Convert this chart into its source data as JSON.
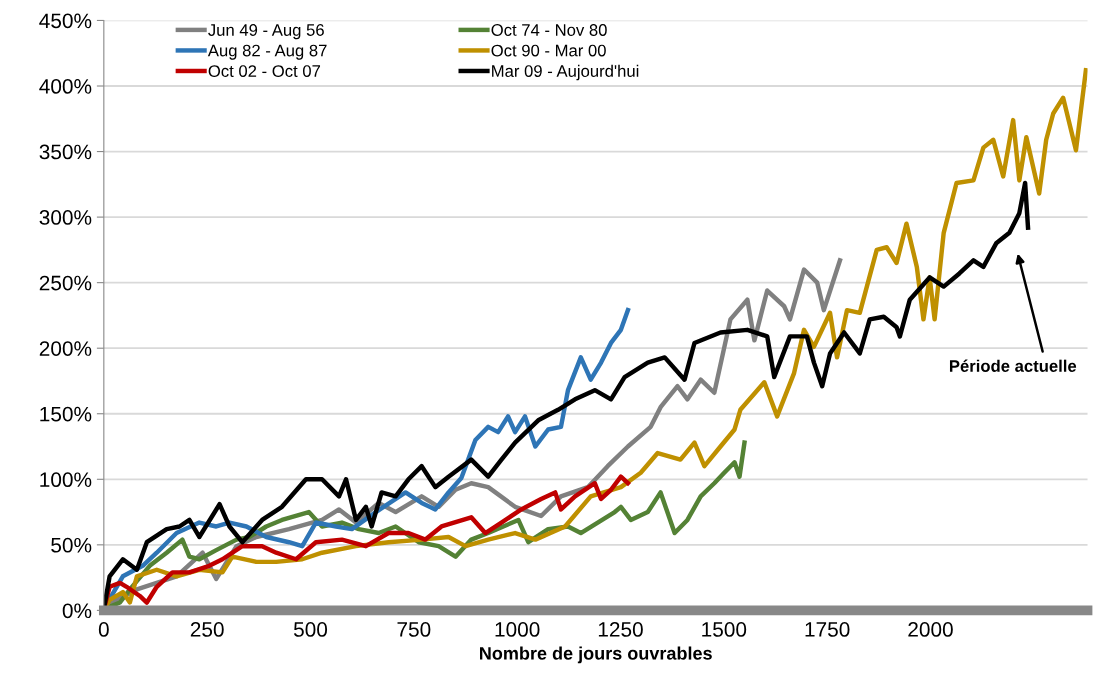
{
  "chart_data": {
    "type": "line",
    "xlabel": "Nombre de jours ouvrables",
    "xlim": [
      0,
      2380
    ],
    "xticks": [
      0,
      250,
      500,
      750,
      1000,
      1250,
      1500,
      1750,
      2000
    ],
    "ylim": [
      0,
      450
    ],
    "yticks": [
      {
        "value": 0,
        "label": "0%"
      },
      {
        "value": 50,
        "label": "50%"
      },
      {
        "value": 100,
        "label": "100%"
      },
      {
        "value": 150,
        "label": "150%"
      },
      {
        "value": 200,
        "label": "200%"
      },
      {
        "value": 250,
        "label": "250%"
      },
      {
        "value": 300,
        "label": "300%"
      },
      {
        "value": 350,
        "label": "350%"
      },
      {
        "value": 400,
        "label": "400%"
      },
      {
        "value": 450,
        "label": "450%"
      }
    ],
    "grid": "y",
    "legend": "top left",
    "marker": "none",
    "line_style": "solid",
    "annotations": [
      "Période actuelle"
    ],
    "series": [
      {
        "name": "Jun 49 - Aug 56",
        "color": "#808080",
        "x": [
          0,
          31,
          80,
          128,
          176,
          239,
          272,
          321,
          369,
          448,
          528,
          569,
          610,
          665,
          706,
          769,
          810,
          851,
          889,
          930,
          995,
          1058,
          1106,
          1171,
          1219,
          1268,
          1323,
          1347,
          1388,
          1412,
          1444,
          1477,
          1516,
          1557,
          1574,
          1605,
          1646,
          1660,
          1694,
          1726,
          1742,
          1781
        ],
        "values": [
          1,
          8,
          16,
          21,
          26,
          44,
          24,
          49,
          56,
          62,
          69,
          77,
          67,
          82,
          75,
          87,
          79,
          92,
          97,
          94,
          79,
          72,
          87,
          94,
          110,
          125,
          140,
          155,
          171,
          161,
          176,
          166,
          222,
          237,
          206,
          244,
          232,
          222,
          260,
          250,
          229,
          267
        ]
      },
      {
        "name": "Oct 74 - Nov 80",
        "color": "#548235",
        "x": [
          0,
          39,
          63,
          111,
          152,
          190,
          207,
          231,
          272,
          321,
          352,
          393,
          431,
          496,
          528,
          576,
          617,
          665,
          706,
          762,
          810,
          851,
          889,
          930,
          1003,
          1027,
          1075,
          1123,
          1154,
          1195,
          1236,
          1251,
          1275,
          1316,
          1347,
          1381,
          1412,
          1444,
          1477,
          1501,
          1526,
          1538,
          1550
        ],
        "values": [
          1,
          6,
          16,
          34,
          44,
          54,
          41,
          39,
          46,
          54,
          56,
          64,
          69,
          75,
          64,
          67,
          62,
          59,
          64,
          52,
          49,
          41,
          54,
          59,
          69,
          52,
          62,
          64,
          59,
          67,
          75,
          79,
          69,
          75,
          90,
          59,
          69,
          87,
          97,
          105,
          113,
          102,
          128
        ]
      },
      {
        "name": "Aug 82 - Aug 87",
        "color": "#2e75b6",
        "x": [
          0,
          46,
          94,
          128,
          176,
          231,
          272,
          304,
          345,
          393,
          448,
          480,
          513,
          562,
          600,
          658,
          730,
          769,
          802,
          834,
          865,
          899,
          930,
          954,
          978,
          995,
          1019,
          1044,
          1075,
          1106,
          1123,
          1154,
          1178,
          1203,
          1227,
          1251,
          1268
        ],
        "values": [
          1,
          26,
          34,
          44,
          59,
          67,
          64,
          67,
          64,
          56,
          52,
          49,
          67,
          64,
          62,
          75,
          90,
          82,
          77,
          90,
          101,
          130,
          140,
          136,
          148,
          136,
          148,
          125,
          138,
          140,
          168,
          193,
          176,
          189,
          204,
          214,
          229
        ]
      },
      {
        "name": "Oct 90 - Mar 00",
        "color": "#bf9000",
        "x": [
          2,
          14,
          46,
          63,
          80,
          128,
          176,
          231,
          287,
          311,
          369,
          417,
          480,
          528,
          610,
          689,
          769,
          834,
          875,
          930,
          995,
          1044,
          1116,
          1178,
          1251,
          1299,
          1340,
          1395,
          1429,
          1453,
          1492,
          1526,
          1540,
          1598,
          1629,
          1670,
          1694,
          1718,
          1757,
          1774,
          1798,
          1829,
          1870,
          1894,
          1918,
          1942,
          1967,
          1983,
          1998,
          2010,
          2032,
          2063,
          2104,
          2128,
          2152,
          2176,
          2200,
          2215,
          2232,
          2263,
          2280,
          2297,
          2321,
          2352,
          2376
        ],
        "values": [
          1,
          8,
          14,
          6,
          26,
          31,
          26,
          31,
          29,
          41,
          37,
          37,
          39,
          44,
          49,
          52,
          54,
          56,
          49,
          54,
          59,
          54,
          64,
          87,
          94,
          105,
          120,
          115,
          128,
          110,
          125,
          138,
          153,
          174,
          148,
          181,
          214,
          201,
          227,
          193,
          229,
          227,
          275,
          277,
          265,
          295,
          262,
          222,
          254,
          222,
          288,
          326,
          328,
          353,
          359,
          331,
          374,
          328,
          361,
          318,
          359,
          379,
          391,
          351,
          412
        ]
      },
      {
        "name": "Oct 02 - Oct 07",
        "color": "#c00000",
        "x": [
          0,
          14,
          39,
          55,
          87,
          104,
          128,
          166,
          207,
          255,
          287,
          335,
          383,
          417,
          465,
          513,
          576,
          634,
          689,
          737,
          778,
          817,
          889,
          923,
          962,
          1010,
          1058,
          1092,
          1106,
          1140,
          1188,
          1203,
          1227,
          1251,
          1268
        ],
        "values": [
          1,
          18,
          21,
          18,
          11,
          6,
          18,
          29,
          29,
          34,
          39,
          49,
          49,
          44,
          39,
          52,
          54,
          49,
          59,
          59,
          54,
          64,
          71,
          59,
          67,
          77,
          85,
          90,
          77,
          87,
          97,
          85,
          92,
          102,
          97
        ]
      },
      {
        "name": "Mar 09 - Aujourd'hui",
        "color": "#000000",
        "x": [
          0,
          14,
          46,
          80,
          104,
          152,
          183,
          207,
          231,
          280,
          304,
          335,
          383,
          431,
          489,
          528,
          569,
          586,
          610,
          634,
          648,
          672,
          706,
          737,
          769,
          802,
          834,
          889,
          930,
          962,
          995,
          1051,
          1099,
          1140,
          1188,
          1227,
          1260,
          1316,
          1357,
          1405,
          1429,
          1492,
          1557,
          1605,
          1622,
          1660,
          1701,
          1718,
          1738,
          1757,
          1791,
          1829,
          1853,
          1887,
          1918,
          1926,
          1950,
          1998,
          2032,
          2070,
          2104,
          2128,
          2159,
          2191,
          2215,
          2229,
          2236
        ],
        "values": [
          1,
          26,
          39,
          31,
          52,
          62,
          64,
          69,
          56,
          81,
          64,
          52,
          69,
          79,
          100,
          100,
          87,
          100,
          69,
          79,
          64,
          90,
          87,
          100,
          110,
          94,
          102,
          115,
          102,
          115,
          128,
          145,
          153,
          161,
          168,
          161,
          178,
          189,
          193,
          176,
          204,
          212,
          214,
          209,
          178,
          209,
          209,
          189,
          171,
          196,
          212,
          196,
          222,
          224,
          216,
          209,
          237,
          254,
          247,
          257,
          267,
          262,
          280,
          288,
          303,
          326,
          292
        ]
      }
    ]
  }
}
